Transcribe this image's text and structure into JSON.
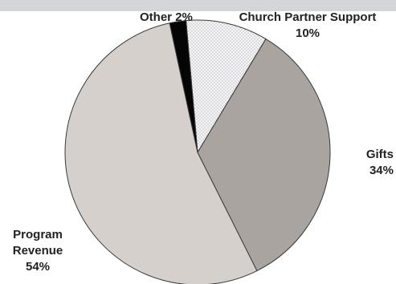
{
  "chart_data": {
    "type": "pie",
    "title": "",
    "start_angle_deg": -5,
    "direction": "clockwise",
    "slices": [
      {
        "label": "Church Partner Support",
        "percent_label": "10%",
        "value": 10,
        "color": "#f3f3f5",
        "pattern": "dotted"
      },
      {
        "label": "Gifts",
        "percent_label": "34%",
        "value": 34,
        "color": "#a9a4a0"
      },
      {
        "label": "Program Revenue",
        "label_lines": [
          "Program",
          "Revenue"
        ],
        "percent_label": "54%",
        "value": 54,
        "color": "#d6d0cc"
      },
      {
        "label": "Other",
        "percent_label": "2%",
        "value": 2,
        "color": "#050505"
      }
    ]
  }
}
